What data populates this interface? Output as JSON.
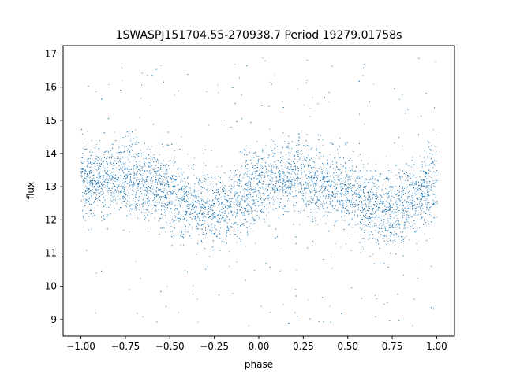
{
  "chart_data": {
    "type": "scatter",
    "title": "1SWASPJ151704.55-270938.7 Period 19279.01758s",
    "xlabel": "phase",
    "ylabel": "flux",
    "xlim": [
      -1.1,
      1.1
    ],
    "ylim": [
      8.5,
      17.25
    ],
    "x_ticks": [
      -1.0,
      -0.75,
      -0.5,
      -0.25,
      0.0,
      0.25,
      0.5,
      0.75,
      1.0
    ],
    "x_tick_labels": [
      "−1.00",
      "−0.75",
      "−0.50",
      "−0.25",
      "0.00",
      "0.25",
      "0.50",
      "0.75",
      "1.00"
    ],
    "y_ticks": [
      9,
      10,
      11,
      12,
      13,
      14,
      15,
      16,
      17
    ],
    "y_tick_labels": [
      "9",
      "10",
      "11",
      "12",
      "13",
      "14",
      "15",
      "16",
      "17"
    ],
    "grid": false,
    "legend": "none",
    "point_color": "#1f77b4",
    "x_range_of_points": [
      -1.0,
      1.0
    ],
    "phase_folded_model": {
      "description_values": "mean flux vs phase (periodic, period 1 in phase)",
      "phase": [
        -1.0,
        -0.8,
        -0.6,
        -0.4,
        -0.3,
        -0.2,
        0.0,
        0.2,
        0.4,
        0.6,
        0.7,
        0.8,
        1.0
      ],
      "mean_flux": [
        13.05,
        13.35,
        13.1,
        12.5,
        12.3,
        12.35,
        13.05,
        13.35,
        13.1,
        12.5,
        12.3,
        12.35,
        13.05
      ],
      "scatter_sigma_core": 0.55,
      "outlier_flux_range": [
        8.8,
        16.9
      ]
    }
  }
}
